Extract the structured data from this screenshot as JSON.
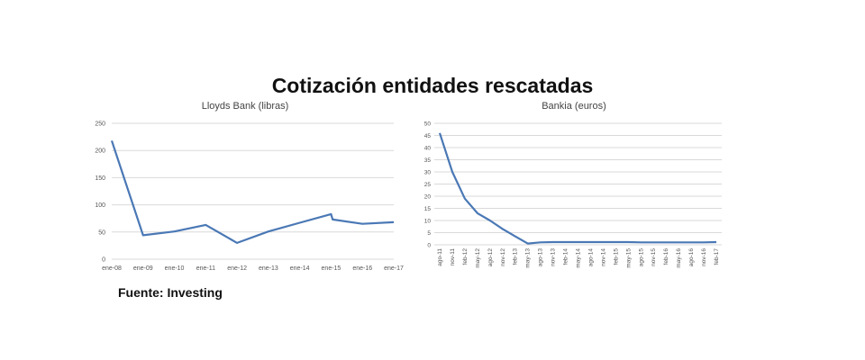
{
  "title": "Cotización entidades rescatadas",
  "source": "Fuente: Investing",
  "colors": {
    "line": "#4a78b5",
    "grid": "#d9d9d9",
    "tick": "#555555"
  },
  "chart_data": [
    {
      "type": "line",
      "title": "Lloyds Bank (libras)",
      "categories": [
        "ene-08",
        "ene-09",
        "ene-10",
        "ene-11",
        "ene-12",
        "ene-13",
        "ene-14",
        "ene-15",
        "ene-16",
        "ene-17"
      ],
      "series": [
        {
          "x": [
            0,
            1,
            2,
            3,
            4,
            5,
            6,
            7,
            7.05,
            8,
            9
          ],
          "y": [
            218,
            44,
            51,
            63,
            30,
            51,
            67,
            83,
            73,
            65,
            68
          ]
        }
      ],
      "ylim": [
        0,
        250
      ],
      "yticks": [
        0,
        50,
        100,
        150,
        200,
        250
      ],
      "grid": true,
      "legend": "none"
    },
    {
      "type": "line",
      "title": "Bankia (euros)",
      "categories": [
        "ago-11",
        "nov-11",
        "feb-12",
        "may-12",
        "ago-12",
        "nov-12",
        "feb-13",
        "may-13",
        "ago-13",
        "nov-13",
        "feb-14",
        "may-14",
        "ago-14",
        "nov-14",
        "feb-15",
        "may-15",
        "ago-15",
        "nov-15",
        "feb-16",
        "may-16",
        "ago-16",
        "nov-16",
        "feb-17"
      ],
      "series": [
        {
          "x": [
            0,
            1,
            2,
            3,
            4,
            5,
            6,
            7,
            8,
            9,
            10,
            11,
            12,
            13,
            14,
            15,
            16,
            17,
            18,
            19,
            20,
            21,
            22
          ],
          "y": [
            46,
            30,
            19,
            13,
            10,
            6.5,
            3.5,
            0.5,
            1,
            1.1,
            1.1,
            1.1,
            1.1,
            1.1,
            1.1,
            1.1,
            1.0,
            1.0,
            1.0,
            1.0,
            1.0,
            1.0,
            1.1
          ]
        }
      ],
      "ylim": [
        0,
        50
      ],
      "yticks": [
        0,
        5,
        10,
        15,
        20,
        25,
        30,
        35,
        40,
        45,
        50
      ],
      "grid": true,
      "legend": "none"
    }
  ]
}
